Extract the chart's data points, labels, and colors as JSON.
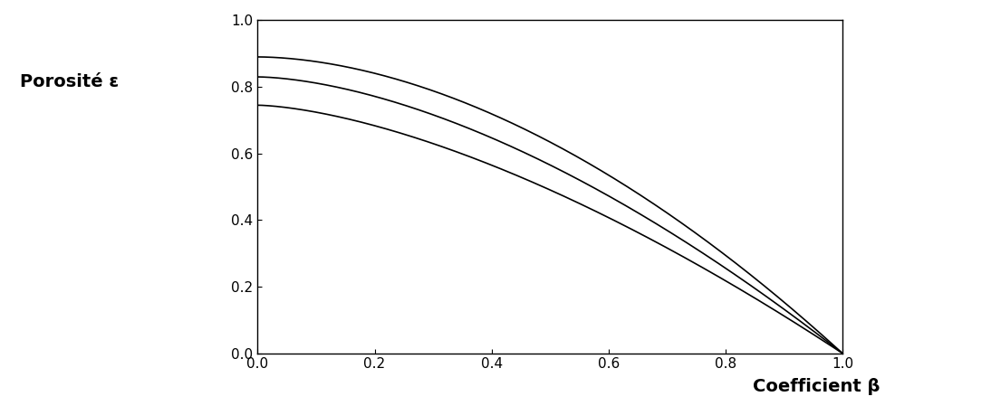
{
  "title": "",
  "ylabel": "Porosité ε",
  "xlabel": "Coefficient β",
  "xlim": [
    0.0,
    1.0
  ],
  "ylim": [
    0.0,
    1.0
  ],
  "xticks": [
    0.0,
    0.2,
    0.4,
    0.6,
    0.8,
    1.0
  ],
  "yticks": [
    0.0,
    0.2,
    0.4,
    0.6,
    0.8,
    1.0
  ],
  "line_color": "#000000",
  "background_color": "#ffffff",
  "curves": [
    {
      "y0": 0.745,
      "alpha": 1.55
    },
    {
      "y0": 0.83,
      "alpha": 1.65
    },
    {
      "y0": 0.89,
      "alpha": 1.8
    }
  ],
  "ylabel_fontsize": 14,
  "xlabel_fontsize": 14,
  "tick_fontsize": 11,
  "linewidth": 1.2
}
